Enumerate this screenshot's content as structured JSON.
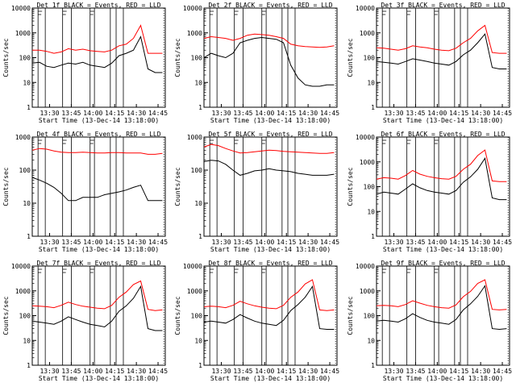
{
  "figure": {
    "colors": {
      "background": "#ffffff",
      "events": "#000000",
      "lld": "#ff0000"
    }
  },
  "chart_data": [
    {
      "type": "line",
      "title": "Det 1f BLACK = Events, RED = LLD",
      "xlabel": "Start Time (13-Dec-14 13:18:00)",
      "ylabel": "Counts/sec",
      "y_scale": "log",
      "ylim": [
        1,
        10000
      ],
      "y_ticks": [
        "1",
        "10",
        "100",
        "1000",
        "10000"
      ],
      "x_ticks": [
        "13:30",
        "13:45",
        "14:00",
        "14:15",
        "14:30",
        "14:45"
      ],
      "x": [
        "13:18",
        "13:23",
        "13:28",
        "13:33",
        "13:38",
        "13:43",
        "13:48",
        "13:53",
        "13:58",
        "14:03",
        "14:08",
        "14:13",
        "14:18",
        "14:23",
        "14:28",
        "14:33",
        "14:38",
        "14:43",
        "14:48"
      ],
      "series": [
        {
          "color": "#000000",
          "values": [
            60,
            65,
            45,
            40,
            50,
            60,
            55,
            65,
            50,
            45,
            40,
            60,
            120,
            150,
            200,
            700,
            35,
            25,
            25
          ]
        },
        {
          "color": "#ff0000",
          "values": [
            200,
            200,
            180,
            150,
            170,
            230,
            200,
            220,
            190,
            180,
            170,
            200,
            300,
            350,
            600,
            2000,
            150,
            150,
            150
          ]
        }
      ]
    },
    {
      "type": "line",
      "title": "Det 2f BLACK = Events, RED = LLD",
      "xlabel": "Start Time (13-Dec-14 13:18:00)",
      "ylabel": "Counts/sec",
      "y_scale": "log",
      "ylim": [
        1,
        10000
      ],
      "y_ticks": [
        "1",
        "10",
        "100",
        "1000",
        "10000"
      ],
      "x_ticks": [
        "13:30",
        "13:45",
        "14:00",
        "14:15",
        "14:30",
        "14:45"
      ],
      "x": [
        "13:18",
        "13:23",
        "13:28",
        "13:33",
        "13:38",
        "13:43",
        "13:48",
        "13:53",
        "13:58",
        "14:03",
        "14:08",
        "14:13",
        "14:18",
        "14:23",
        "14:28",
        "14:33",
        "14:38",
        "14:43",
        "14:48"
      ],
      "series": [
        {
          "color": "#000000",
          "values": [
            100,
            150,
            120,
            100,
            150,
            400,
            500,
            600,
            650,
            600,
            550,
            400,
            50,
            15,
            8,
            7,
            7,
            8,
            8
          ]
        },
        {
          "color": "#ff0000",
          "values": [
            600,
            700,
            650,
            600,
            500,
            600,
            800,
            900,
            850,
            800,
            700,
            600,
            350,
            300,
            280,
            270,
            260,
            270,
            300
          ]
        }
      ]
    },
    {
      "type": "line",
      "title": "Det 3f BLACK = Events, RED = LLD",
      "xlabel": "Start Time (13-Dec-14 13:18:00)",
      "ylabel": "Counts/sec",
      "y_scale": "log",
      "ylim": [
        1,
        10000
      ],
      "y_ticks": [
        "1",
        "10",
        "100",
        "1000",
        "10000"
      ],
      "x_ticks": [
        "13:30",
        "13:45",
        "14:00",
        "14:15",
        "14:30",
        "14:45"
      ],
      "x": [
        "13:18",
        "13:23",
        "13:28",
        "13:33",
        "13:38",
        "13:43",
        "13:48",
        "13:53",
        "13:58",
        "14:03",
        "14:08",
        "14:13",
        "14:18",
        "14:23",
        "14:28",
        "14:33",
        "14:38",
        "14:43",
        "14:48"
      ],
      "series": [
        {
          "color": "#000000",
          "values": [
            70,
            65,
            60,
            55,
            70,
            90,
            80,
            70,
            60,
            55,
            50,
            70,
            130,
            200,
            400,
            900,
            40,
            35,
            35
          ]
        },
        {
          "color": "#ff0000",
          "values": [
            250,
            240,
            220,
            200,
            230,
            300,
            270,
            250,
            220,
            200,
            190,
            240,
            400,
            600,
            1200,
            2000,
            160,
            150,
            150
          ]
        }
      ]
    },
    {
      "type": "line",
      "title": "Det 4f BLACK = Events, RED = LLD",
      "xlabel": "Start Time (13-Dec-14 13:18:00)",
      "ylabel": "Counts/sec",
      "y_scale": "log",
      "ylim": [
        1,
        1000
      ],
      "y_ticks": [
        "1",
        "10",
        "100",
        "1000"
      ],
      "x_ticks": [
        "13:30",
        "13:45",
        "14:00",
        "14:15",
        "14:30",
        "14:45"
      ],
      "x": [
        "13:18",
        "13:23",
        "13:28",
        "13:33",
        "13:38",
        "13:43",
        "13:48",
        "13:53",
        "13:58",
        "14:03",
        "14:08",
        "14:13",
        "14:18",
        "14:23",
        "14:28",
        "14:33",
        "14:38",
        "14:43",
        "14:48"
      ],
      "series": [
        {
          "color": "#000000",
          "values": [
            60,
            50,
            40,
            30,
            20,
            12,
            12,
            15,
            15,
            15,
            18,
            20,
            22,
            25,
            30,
            35,
            12,
            12,
            12
          ]
        },
        {
          "color": "#ff0000",
          "values": [
            400,
            450,
            430,
            380,
            350,
            340,
            340,
            350,
            340,
            330,
            330,
            340,
            340,
            330,
            330,
            330,
            300,
            300,
            320
          ]
        }
      ]
    },
    {
      "type": "line",
      "title": "Det 5f BLACK = Events, RED = LLD",
      "xlabel": "Start Time (13-Dec-14 13:18:00)",
      "ylabel": "Counts/sec",
      "y_scale": "log",
      "ylim": [
        1,
        1000
      ],
      "y_ticks": [
        "1",
        "10",
        "100",
        "1000"
      ],
      "x_ticks": [
        "13:30",
        "13:45",
        "14:00",
        "14:15",
        "14:30",
        "14:45"
      ],
      "x": [
        "13:18",
        "13:23",
        "13:28",
        "13:33",
        "13:38",
        "13:43",
        "13:48",
        "13:53",
        "13:58",
        "14:03",
        "14:08",
        "14:13",
        "14:18",
        "14:23",
        "14:28",
        "14:33",
        "14:38",
        "14:43",
        "14:48"
      ],
      "series": [
        {
          "color": "#000000",
          "values": [
            180,
            200,
            190,
            150,
            100,
            70,
            80,
            95,
            100,
            110,
            100,
            95,
            90,
            80,
            75,
            70,
            70,
            70,
            75
          ]
        },
        {
          "color": "#ff0000",
          "values": [
            500,
            600,
            550,
            450,
            380,
            330,
            340,
            360,
            380,
            400,
            390,
            370,
            360,
            350,
            340,
            330,
            320,
            320,
            340
          ]
        }
      ]
    },
    {
      "type": "line",
      "title": "Det 6f BLACK = Events, RED = LLD",
      "xlabel": "Start Time (13-Dec-14 13:18:00)",
      "ylabel": "Counts/sec",
      "y_scale": "log",
      "ylim": [
        1,
        10000
      ],
      "y_ticks": [
        "1",
        "10",
        "100",
        "1000",
        "10000"
      ],
      "x_ticks": [
        "13:30",
        "13:45",
        "14:00",
        "14:15",
        "14:30",
        "14:45"
      ],
      "x": [
        "13:18",
        "13:23",
        "13:28",
        "13:33",
        "13:38",
        "13:43",
        "13:48",
        "13:53",
        "13:58",
        "14:03",
        "14:08",
        "14:13",
        "14:18",
        "14:23",
        "14:28",
        "14:33",
        "14:38",
        "14:43",
        "14:48"
      ],
      "series": [
        {
          "color": "#000000",
          "values": [
            50,
            60,
            55,
            50,
            80,
            130,
            90,
            70,
            60,
            55,
            50,
            70,
            150,
            250,
            500,
            1400,
            35,
            30,
            30
          ]
        },
        {
          "color": "#ff0000",
          "values": [
            200,
            230,
            220,
            200,
            280,
            450,
            320,
            260,
            230,
            210,
            200,
            260,
            500,
            800,
            1800,
            3000,
            170,
            160,
            160
          ]
        }
      ]
    },
    {
      "type": "line",
      "title": "Det 7f BLACK = Events, RED = LLD",
      "xlabel": "Start Time (13-Dec-14 13:18:00)",
      "ylabel": "Counts/sec",
      "y_scale": "log",
      "ylim": [
        1,
        10000
      ],
      "y_ticks": [
        "1",
        "10",
        "100",
        "1000",
        "10000"
      ],
      "x_ticks": [
        "13:30",
        "13:45",
        "14:00",
        "14:15",
        "14:30",
        "14:45"
      ],
      "x": [
        "13:18",
        "13:23",
        "13:28",
        "13:33",
        "13:38",
        "13:43",
        "13:48",
        "13:53",
        "13:58",
        "14:03",
        "14:08",
        "14:13",
        "14:18",
        "14:23",
        "14:28",
        "14:33",
        "14:38",
        "14:43",
        "14:48"
      ],
      "series": [
        {
          "color": "#000000",
          "values": [
            60,
            55,
            50,
            45,
            60,
            90,
            70,
            55,
            45,
            40,
            35,
            60,
            150,
            250,
            500,
            1500,
            30,
            25,
            25
          ]
        },
        {
          "color": "#ff0000",
          "values": [
            250,
            240,
            230,
            210,
            260,
            350,
            280,
            240,
            220,
            200,
            190,
            260,
            550,
            900,
            1800,
            2500,
            180,
            160,
            170
          ]
        }
      ]
    },
    {
      "type": "line",
      "title": "Det 8f BLACK = Events, RED = LLD",
      "xlabel": "Start Time (13-Dec-14 13:18:00)",
      "ylabel": "Counts/sec",
      "y_scale": "log",
      "ylim": [
        1,
        10000
      ],
      "y_ticks": [
        "1",
        "10",
        "100",
        "1000",
        "10000"
      ],
      "x_ticks": [
        "13:30",
        "13:45",
        "14:00",
        "14:15",
        "14:30",
        "14:45"
      ],
      "x": [
        "13:18",
        "13:23",
        "13:28",
        "13:33",
        "13:38",
        "13:43",
        "13:48",
        "13:53",
        "13:58",
        "14:03",
        "14:08",
        "14:13",
        "14:18",
        "14:23",
        "14:28",
        "14:33",
        "14:38",
        "14:43",
        "14:48"
      ],
      "series": [
        {
          "color": "#000000",
          "values": [
            55,
            60,
            55,
            50,
            70,
            110,
            80,
            60,
            50,
            45,
            40,
            65,
            160,
            280,
            550,
            1500,
            30,
            28,
            28
          ]
        },
        {
          "color": "#ff0000",
          "values": [
            230,
            240,
            230,
            210,
            260,
            380,
            300,
            250,
            220,
            200,
            190,
            260,
            550,
            900,
            1900,
            2800,
            170,
            160,
            170
          ]
        }
      ]
    },
    {
      "type": "line",
      "title": "Det 9f BLACK = Events, RED = LLD",
      "xlabel": "Start Time (13-Dec-14 13:18:00)",
      "ylabel": "Counts/sec",
      "y_scale": "log",
      "ylim": [
        1,
        10000
      ],
      "y_ticks": [
        "1",
        "10",
        "100",
        "1000",
        "10000"
      ],
      "x_ticks": [
        "13:30",
        "13:45",
        "14:00",
        "14:15",
        "14:30",
        "14:45"
      ],
      "x": [
        "13:18",
        "13:23",
        "13:28",
        "13:33",
        "13:38",
        "13:43",
        "13:48",
        "13:53",
        "13:58",
        "14:03",
        "14:08",
        "14:13",
        "14:18",
        "14:23",
        "14:28",
        "14:33",
        "14:38",
        "14:43",
        "14:48"
      ],
      "series": [
        {
          "color": "#000000",
          "values": [
            60,
            65,
            60,
            55,
            75,
            120,
            85,
            65,
            55,
            50,
            45,
            70,
            170,
            300,
            600,
            1600,
            30,
            28,
            30
          ]
        },
        {
          "color": "#ff0000",
          "values": [
            250,
            260,
            250,
            230,
            280,
            400,
            320,
            260,
            230,
            210,
            200,
            270,
            580,
            950,
            2000,
            2800,
            180,
            170,
            180
          ]
        }
      ]
    }
  ]
}
